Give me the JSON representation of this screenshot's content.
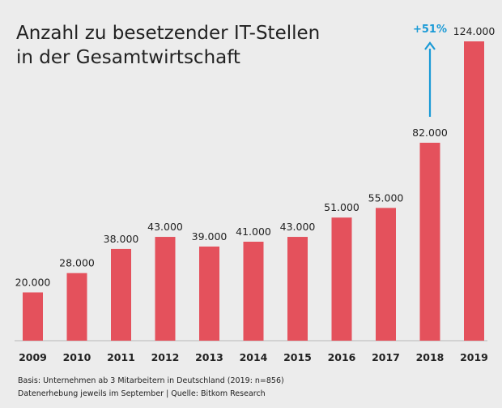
{
  "title": {
    "line1": "Anzahl zu besetzender IT-Stellen",
    "line2": "in der Gesamtwirtschaft"
  },
  "chart_data": {
    "type": "bar",
    "title": "Anzahl zu besetzender IT-Stellen in der Gesamtwirtschaft",
    "categories": [
      "2009",
      "2010",
      "2011",
      "2012",
      "2013",
      "2014",
      "2015",
      "2016",
      "2017",
      "2018",
      "2019"
    ],
    "values": [
      20000,
      28000,
      38000,
      43000,
      39000,
      41000,
      43000,
      51000,
      55000,
      82000,
      124000
    ],
    "value_labels": [
      "20.000",
      "28.000",
      "38.000",
      "43.000",
      "39.000",
      "41.000",
      "43.000",
      "51.000",
      "55.000",
      "82.000",
      "124.000"
    ],
    "ylim": [
      0,
      124000
    ],
    "xlabel": "",
    "ylabel": "",
    "grid": false,
    "annotation": {
      "text": "+51%",
      "from": "2018",
      "color": "#1a9ad6"
    },
    "bar_color": "#e4515c"
  },
  "footnote": {
    "line1": "Basis: Unternehmen ab 3 Mitarbeitern in Deutschland (2019: n=856)",
    "line2": "Datenerhebung jeweils im September | Quelle: Bitkom Research"
  }
}
